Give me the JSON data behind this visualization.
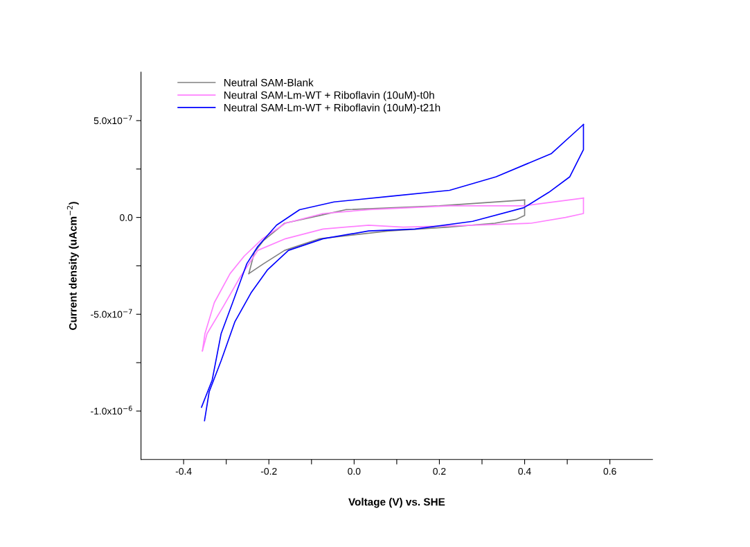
{
  "chart_data": {
    "type": "line",
    "xlabel": "Voltage (V) vs. SHE",
    "ylabel": "Current density (uAcm$^{−2}$)",
    "xlim": [
      -0.5,
      0.7
    ],
    "ylim": [
      -1.25e-06,
      7.5e-07
    ],
    "xticks": [
      {
        "value": -0.4,
        "label": "-0.4"
      },
      {
        "value": -0.3,
        "label": null
      },
      {
        "value": -0.2,
        "label": "-0.2"
      },
      {
        "value": -0.1,
        "label": null
      },
      {
        "value": 0,
        "label": "0.0"
      },
      {
        "value": 0.1,
        "label": null
      },
      {
        "value": 0.2,
        "label": "0.2"
      },
      {
        "value": 0.3,
        "label": null
      },
      {
        "value": 0.4,
        "label": "0.4"
      },
      {
        "value": 0.5,
        "label": null
      },
      {
        "value": 0.6,
        "label": "0.6"
      }
    ],
    "yticks": [
      {
        "value": -1e-06,
        "label": "-1.0x10$^{−6}$"
      },
      {
        "value": -7.5e-07,
        "label": null
      },
      {
        "value": -5e-07,
        "label": "-5.0x10$^{−7}$"
      },
      {
        "value": -2.5e-07,
        "label": null
      },
      {
        "value": 0,
        "label": "0.0"
      },
      {
        "value": 2.5e-07,
        "label": null
      },
      {
        "value": 5e-07,
        "label": "5.0x10$^{−7}$"
      }
    ],
    "grid": false,
    "legend": "top left",
    "marker": "none",
    "line_style": "solid",
    "series": [
      {
        "name": "Neutral SAM-Blank",
        "color": "#808080",
        "x": [
          -0.247,
          -0.234,
          -0.213,
          -0.163,
          -0.081,
          -0.02,
          0.2,
          0.4
        ],
        "values": [
          -2.9e-07,
          -1.8e-07,
          -1.2e-07,
          -3e-08,
          1e-08,
          4e-08,
          6e-08,
          9e-08
        ]
      },
      {
        "color": "#808080",
        "x": [
          -0.247,
          -0.213,
          -0.163,
          -0.081,
          0.081,
          0.22,
          0.33,
          0.38,
          0.4,
          0.4
        ],
        "values": [
          -2.9e-07,
          -2.4e-07,
          -1.7e-07,
          -1.1e-07,
          -7e-08,
          -5e-08,
          -3e-08,
          -1e-08,
          1e-08,
          9e-08
        ]
      },
      {
        "name": "Neutral SAM-Lm-WT + Riboflavin (10uM)-t0h",
        "color": "#ff80ff",
        "x": [
          -0.356,
          -0.35,
          -0.328,
          -0.291,
          -0.258,
          -0.215,
          -0.161,
          -0.073,
          0.034,
          0.224,
          0.398,
          0.538
        ],
        "values": [
          -6.9e-07,
          -6e-07,
          -4.4e-07,
          -2.9e-07,
          -2e-07,
          -1.1e-07,
          -3e-08,
          2e-08,
          4e-08,
          6e-08,
          6e-08,
          1e-07
        ]
      },
      {
        "color": "#ff80ff",
        "x": [
          -0.356,
          -0.345,
          -0.307,
          -0.268,
          -0.226,
          -0.161,
          -0.073,
          0.034,
          0.115,
          0.278,
          0.415,
          0.496,
          0.538,
          0.538
        ],
        "values": [
          -6.9e-07,
          -6e-07,
          -4.6e-07,
          -3.1e-07,
          -1.7e-07,
          -1.1e-07,
          -6e-08,
          -4e-08,
          -5e-08,
          -4e-08,
          -3e-08,
          0.0,
          2e-08,
          1e-07
        ]
      },
      {
        "name": "Neutral SAM-Lm-WT + Riboflavin (10uM)-t21h",
        "color": "#0000ff",
        "x": [
          -0.358,
          -0.333,
          -0.312,
          -0.285,
          -0.252,
          -0.226,
          -0.182,
          -0.128,
          -0.047,
          0.089,
          0.224,
          0.333,
          0.463,
          0.538
        ],
        "values": [
          -9.8e-07,
          -8.4e-07,
          -6e-07,
          -4.4e-07,
          -2.4e-07,
          -1.5e-07,
          -4e-08,
          4e-08,
          8e-08,
          1.1e-07,
          1.4e-07,
          2.1e-07,
          3.3e-07,
          4.8e-07
        ]
      },
      {
        "color": "#0000ff",
        "x": [
          -0.351,
          -0.34,
          -0.312,
          -0.28,
          -0.242,
          -0.203,
          -0.154,
          -0.073,
          0.034,
          0.143,
          0.278,
          0.398,
          0.457,
          0.506,
          0.538,
          0.538
        ],
        "values": [
          -1.05e-06,
          -9e-07,
          -7.4e-07,
          -5.4e-07,
          -3.9e-07,
          -2.7e-07,
          -1.7e-07,
          -1.1e-07,
          -7e-08,
          -6e-08,
          -2e-08,
          5e-08,
          1.3e-07,
          2.1e-07,
          3.5e-07,
          4.8e-07
        ]
      }
    ]
  }
}
